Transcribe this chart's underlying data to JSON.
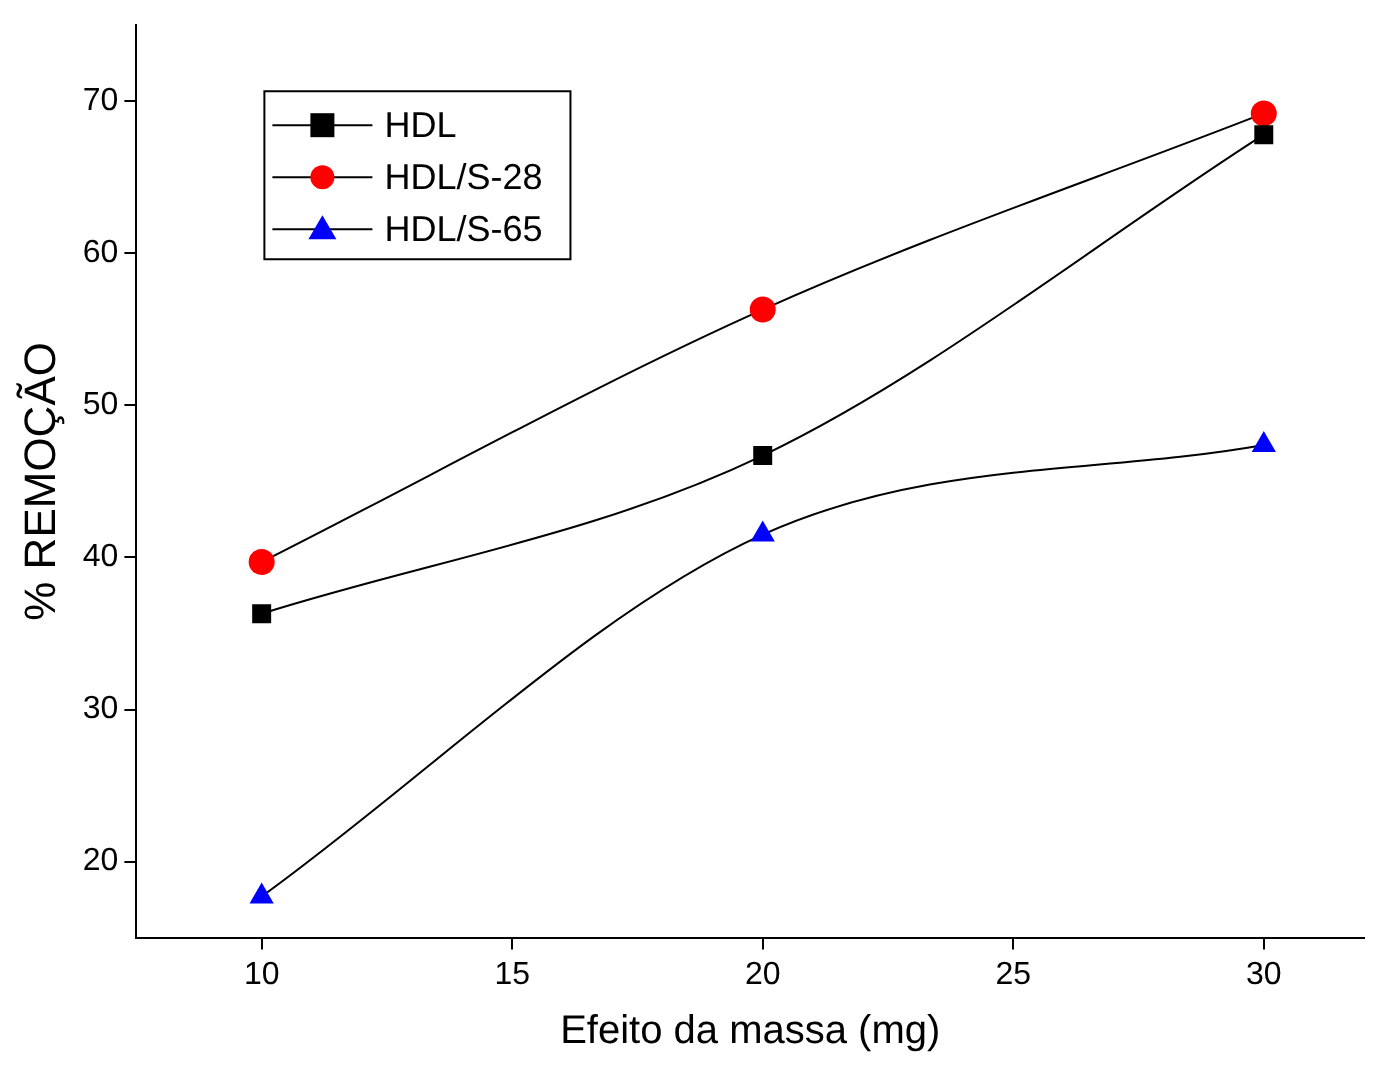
{
  "chart_data": {
    "type": "line",
    "xlabel": "Efeito da massa (mg)",
    "ylabel": "% REMOÇÃO",
    "x": [
      10,
      20,
      30
    ],
    "xlim": [
      7.5,
      32
    ],
    "xticks": [
      10,
      15,
      20,
      25,
      30
    ],
    "ylim": [
      15,
      75
    ],
    "yticks": [
      20,
      30,
      40,
      50,
      60,
      70
    ],
    "grid": false,
    "legend": "top left",
    "series": [
      {
        "name": "HDL",
        "color": "#000000",
        "marker": "square",
        "values": [
          36.3,
          46.7,
          67.8
        ]
      },
      {
        "name": "HDL/S-28",
        "color": "#ff0000",
        "marker": "circle",
        "values": [
          39.7,
          56.3,
          69.2
        ]
      },
      {
        "name": "HDL/S-65",
        "color": "#0000ff",
        "marker": "triangle",
        "values": [
          17.7,
          41.5,
          47.4
        ]
      }
    ]
  }
}
